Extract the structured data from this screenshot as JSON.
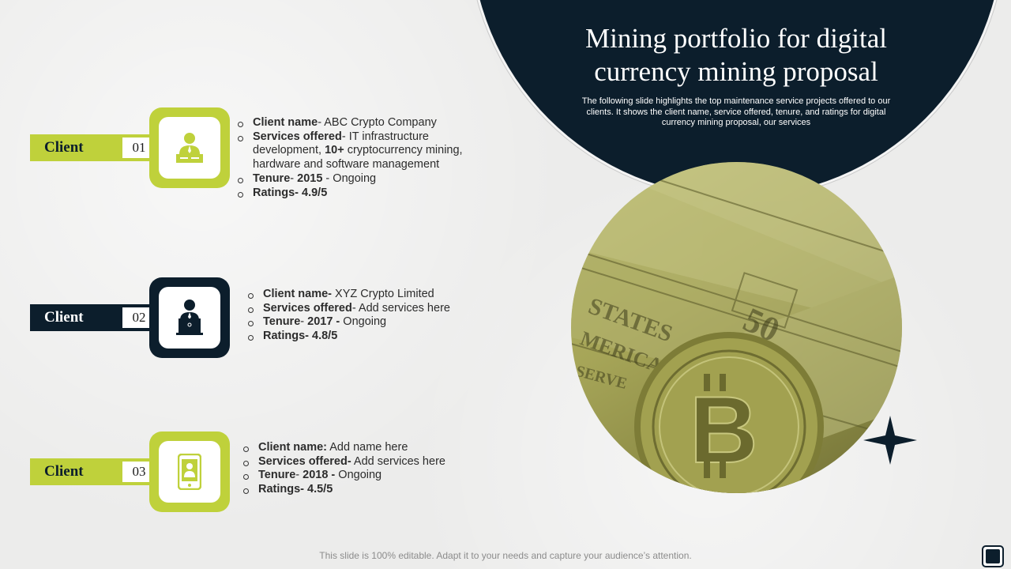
{
  "title": "Mining portfolio for digital currency mining proposal",
  "subtitle": "The following slide highlights the top maintenance service projects offered to our clients. It shows the client name, service offered, tenure, and ratings for digital currency mining proposal, our services",
  "footer": "This slide is 100% editable. Adapt it to your needs and capture your audience’s attention.",
  "colors": {
    "accent": "#bfd13b",
    "dark": "#0c1e2c",
    "background": "#efefee"
  },
  "clients": [
    {
      "label": "Client",
      "number": "01",
      "icon": "person-at-desk-icon",
      "name_label": "Client name",
      "name_value": "- ABC Crypto Company",
      "services_label": "Services offered",
      "services_value_1": "- IT infrastructure development, ",
      "services_bold": "10+",
      "services_value_2": " cryptocurrency mining, hardware and software management",
      "tenure_label": "Tenure",
      "tenure_sep": "- ",
      "tenure_year": "2015",
      "tenure_value": " - Ongoing",
      "ratings_label": "Ratings",
      "ratings_value": "- 4.9/5"
    },
    {
      "label": "Client",
      "number": "02",
      "icon": "person-with-laptop-icon",
      "name_label": "Client name-",
      "name_value": " XYZ Crypto Limited",
      "services_label": "Services offered",
      "services_value": "- Add services here",
      "tenure_label": "Tenure",
      "tenure_sep": "- ",
      "tenure_year": "2017 -",
      "tenure_value": " Ongoing",
      "ratings_label": "Ratings",
      "ratings_value": "- 4.8/5"
    },
    {
      "label": "Client",
      "number": "03",
      "icon": "mobile-profile-icon",
      "name_label": "Client name:",
      "name_value": " Add name here",
      "services_label": "Services offered-",
      "services_value": " Add services here",
      "tenure_label": "Tenure",
      "tenure_sep": "- ",
      "tenure_year": "2018 -",
      "tenure_value": " Ongoing",
      "ratings_label": "Ratings",
      "ratings_value": "- 4.5/5"
    }
  ]
}
